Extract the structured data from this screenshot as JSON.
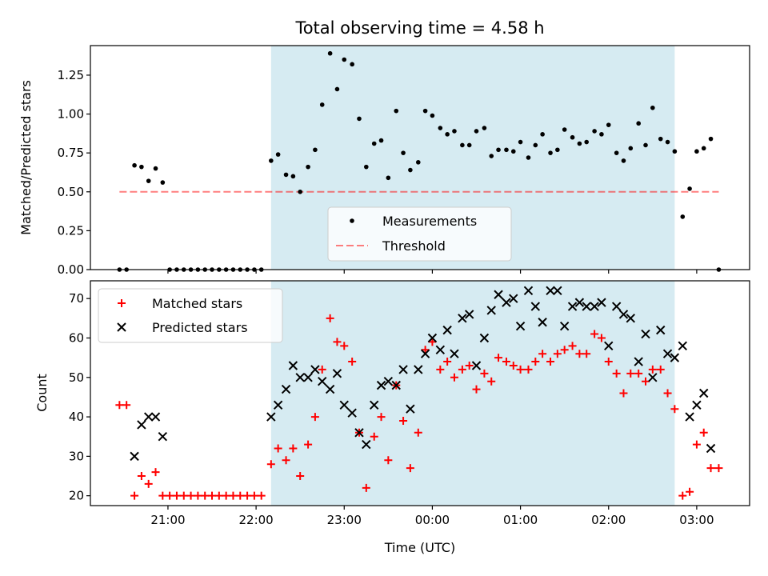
{
  "colors": {
    "shade": "#add8e6",
    "measurement": "#000000",
    "threshold": "#ff0000",
    "matched": "#ff0000",
    "predicted": "#000000"
  },
  "chart_data": {
    "title": "Total observing time = 4.58 h",
    "xlabel": "Time (UTC)",
    "x_unit": "hours since 00:00 UTC",
    "x_ticks": [
      {
        "value": -3,
        "label": "21:00"
      },
      {
        "value": -2,
        "label": "22:00"
      },
      {
        "value": -1,
        "label": "23:00"
      },
      {
        "value": 0,
        "label": "00:00"
      },
      {
        "value": 1,
        "label": "01:00"
      },
      {
        "value": 2,
        "label": "02:00"
      },
      {
        "value": 3,
        "label": "03:00"
      }
    ],
    "xlim": [
      -3.88,
      3.6
    ],
    "observing_window": [
      -1.83,
      2.75
    ],
    "panels": [
      {
        "type": "scatter",
        "ylabel": "Matched/Predicted stars",
        "ylim": [
          0,
          1.44
        ],
        "y_ticks": [
          {
            "value": 0,
            "label": "0.00"
          },
          {
            "value": 0.25,
            "label": "0.25"
          },
          {
            "value": 0.5,
            "label": "0.50"
          },
          {
            "value": 0.75,
            "label": "0.75"
          },
          {
            "value": 1.0,
            "label": "1.00"
          },
          {
            "value": 1.25,
            "label": "1.25"
          }
        ],
        "legend_position": "lower-center",
        "threshold": {
          "name": "Threshold",
          "value": 0.5,
          "x_range": [
            -3.55,
            3.25
          ]
        },
        "series": [
          {
            "name": "Measurements",
            "points": [
              [
                -3.55,
                0
              ],
              [
                -3.47,
                0
              ],
              [
                -3.38,
                0.67
              ],
              [
                -3.3,
                0.66
              ],
              [
                -3.22,
                0.57
              ],
              [
                -3.14,
                0.65
              ],
              [
                -3.06,
                0.56
              ],
              [
                -2.98,
                0
              ],
              [
                -2.9,
                0
              ],
              [
                -2.82,
                0
              ],
              [
                -2.74,
                0
              ],
              [
                -2.66,
                0
              ],
              [
                -2.58,
                0
              ],
              [
                -2.5,
                0
              ],
              [
                -2.42,
                0
              ],
              [
                -2.34,
                0
              ],
              [
                -2.26,
                0
              ],
              [
                -2.18,
                0
              ],
              [
                -2.1,
                0
              ],
              [
                -2.02,
                0
              ],
              [
                -1.94,
                0
              ],
              [
                -1.83,
                0.7
              ],
              [
                -1.75,
                0.74
              ],
              [
                -1.66,
                0.61
              ],
              [
                -1.58,
                0.6
              ],
              [
                -1.5,
                0.5
              ],
              [
                -1.41,
                0.66
              ],
              [
                -1.33,
                0.77
              ],
              [
                -1.25,
                1.06
              ],
              [
                -1.16,
                1.39
              ],
              [
                -1.08,
                1.16
              ],
              [
                -1.0,
                1.35
              ],
              [
                -0.91,
                1.32
              ],
              [
                -0.83,
                0.97
              ],
              [
                -0.75,
                0.66
              ],
              [
                -0.66,
                0.81
              ],
              [
                -0.58,
                0.83
              ],
              [
                -0.5,
                0.59
              ],
              [
                -0.41,
                1.02
              ],
              [
                -0.33,
                0.75
              ],
              [
                -0.25,
                0.64
              ],
              [
                -0.16,
                0.69
              ],
              [
                -0.08,
                1.02
              ],
              [
                0.0,
                0.99
              ],
              [
                0.09,
                0.91
              ],
              [
                0.17,
                0.87
              ],
              [
                0.25,
                0.89
              ],
              [
                0.34,
                0.8
              ],
              [
                0.42,
                0.8
              ],
              [
                0.5,
                0.89
              ],
              [
                0.59,
                0.91
              ],
              [
                0.67,
                0.73
              ],
              [
                0.75,
                0.77
              ],
              [
                0.84,
                0.77
              ],
              [
                0.92,
                0.76
              ],
              [
                1.0,
                0.82
              ],
              [
                1.09,
                0.72
              ],
              [
                1.17,
                0.8
              ],
              [
                1.25,
                0.87
              ],
              [
                1.34,
                0.75
              ],
              [
                1.42,
                0.77
              ],
              [
                1.5,
                0.9
              ],
              [
                1.59,
                0.85
              ],
              [
                1.67,
                0.81
              ],
              [
                1.75,
                0.82
              ],
              [
                1.84,
                0.89
              ],
              [
                1.92,
                0.87
              ],
              [
                2.0,
                0.93
              ],
              [
                2.09,
                0.75
              ],
              [
                2.17,
                0.7
              ],
              [
                2.25,
                0.78
              ],
              [
                2.34,
                0.94
              ],
              [
                2.42,
                0.8
              ],
              [
                2.5,
                1.04
              ],
              [
                2.59,
                0.84
              ],
              [
                2.67,
                0.82
              ],
              [
                2.75,
                0.76
              ],
              [
                2.84,
                0.34
              ],
              [
                2.92,
                0.52
              ],
              [
                3.0,
                0.76
              ],
              [
                3.08,
                0.78
              ],
              [
                3.16,
                0.84
              ],
              [
                3.25,
                0
              ]
            ]
          }
        ]
      },
      {
        "type": "scatter",
        "ylabel": "Count",
        "ylim": [
          17.5,
          74.5
        ],
        "y_ticks": [
          {
            "value": 20,
            "label": "20"
          },
          {
            "value": 30,
            "label": "30"
          },
          {
            "value": 40,
            "label": "40"
          },
          {
            "value": 50,
            "label": "50"
          },
          {
            "value": 60,
            "label": "60"
          },
          {
            "value": 70,
            "label": "70"
          }
        ],
        "legend_position": "upper-left",
        "series": [
          {
            "name": "Matched stars",
            "x": [
              -3.55,
              -3.47,
              -3.38,
              -3.3,
              -3.22,
              -3.14,
              -3.06,
              -2.98,
              -2.9,
              -2.82,
              -2.74,
              -2.66,
              -2.58,
              -2.5,
              -2.42,
              -2.34,
              -2.26,
              -2.18,
              -2.1,
              -2.02,
              -1.94,
              -1.83,
              -1.75,
              -1.66,
              -1.58,
              -1.5,
              -1.41,
              -1.33,
              -1.25,
              -1.16,
              -1.08,
              -1.0,
              -0.91,
              -0.83,
              -0.75,
              -0.66,
              -0.58,
              -0.5,
              -0.41,
              -0.33,
              -0.25,
              -0.16,
              -0.08,
              0.0,
              0.09,
              0.17,
              0.25,
              0.34,
              0.42,
              0.5,
              0.59,
              0.67,
              0.75,
              0.84,
              0.92,
              1.0,
              1.09,
              1.17,
              1.25,
              1.34,
              1.42,
              1.5,
              1.59,
              1.67,
              1.75,
              1.84,
              1.92,
              2.0,
              2.09,
              2.17,
              2.25,
              2.34,
              2.42,
              2.5,
              2.59,
              2.67,
              2.75,
              2.84,
              2.92,
              3.0,
              3.08,
              3.16,
              3.25
            ],
            "values": [
              43,
              43,
              20,
              25,
              23,
              26,
              20,
              20,
              20,
              20,
              20,
              20,
              20,
              20,
              20,
              20,
              20,
              20,
              20,
              20,
              20,
              28,
              32,
              29,
              32,
              25,
              33,
              40,
              52,
              65,
              59,
              58,
              54,
              36,
              22,
              35,
              40,
              29,
              48,
              39,
              27,
              36,
              57,
              59,
              52,
              54,
              50,
              52,
              53,
              47,
              51,
              49,
              55,
              54,
              53,
              52,
              52,
              54,
              56,
              54,
              56,
              57,
              58,
              56,
              56,
              61,
              60,
              54,
              51,
              46,
              51,
              51,
              49,
              52,
              52,
              46,
              42,
              20,
              21,
              33,
              36,
              27,
              27
            ]
          },
          {
            "name": "Predicted stars",
            "x": [
              -3.38,
              -3.3,
              -3.22,
              -3.14,
              -3.06,
              -1.83,
              -1.75,
              -1.66,
              -1.58,
              -1.5,
              -1.41,
              -1.33,
              -1.25,
              -1.16,
              -1.08,
              -1.0,
              -0.91,
              -0.83,
              -0.75,
              -0.66,
              -0.58,
              -0.5,
              -0.41,
              -0.33,
              -0.25,
              -0.16,
              -0.08,
              0.0,
              0.09,
              0.17,
              0.25,
              0.34,
              0.42,
              0.5,
              0.59,
              0.67,
              0.75,
              0.84,
              0.92,
              1.0,
              1.09,
              1.17,
              1.25,
              1.34,
              1.42,
              1.5,
              1.59,
              1.67,
              1.75,
              1.84,
              1.92,
              2.0,
              2.09,
              2.17,
              2.25,
              2.34,
              2.42,
              2.5,
              2.59,
              2.67,
              2.75,
              2.84,
              2.92,
              3.0,
              3.08,
              3.16
            ],
            "values": [
              30,
              38,
              40,
              40,
              35,
              40,
              43,
              47,
              53,
              50,
              50,
              52,
              49,
              47,
              51,
              43,
              41,
              36,
              33,
              43,
              48,
              49,
              48,
              52,
              42,
              52,
              56,
              60,
              57,
              62,
              56,
              65,
              66,
              53,
              60,
              67,
              71,
              69,
              70,
              63,
              72,
              68,
              64,
              72,
              72,
              63,
              68,
              69,
              68,
              68,
              69,
              58,
              68,
              66,
              65,
              54,
              61,
              50,
              62,
              56,
              55,
              58,
              40,
              43,
              46,
              32
            ]
          }
        ]
      }
    ]
  }
}
